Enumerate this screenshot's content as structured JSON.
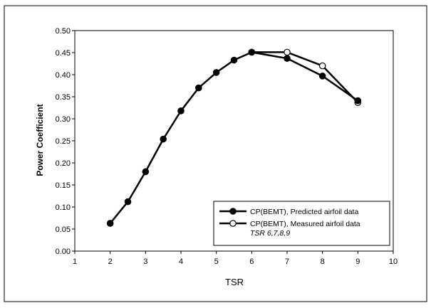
{
  "chart_data": {
    "type": "line",
    "title": "",
    "xlabel": "TSR",
    "ylabel": "Power Coefficient",
    "xlim": [
      1,
      10
    ],
    "ylim": [
      0.0,
      0.5
    ],
    "x_ticks": [
      "1",
      "2",
      "3",
      "4",
      "5",
      "6",
      "7",
      "8",
      "9",
      "10"
    ],
    "y_ticks": [
      "0.00",
      "0.05",
      "0.10",
      "0.15",
      "0.20",
      "0.25",
      "0.30",
      "0.35",
      "0.40",
      "0.45",
      "0.50"
    ],
    "grid": false,
    "legend_position": "bottom-right",
    "series": [
      {
        "name": "CP(BEMT), Predicted airfoil data",
        "marker": "filled-circle",
        "color": "#000000",
        "x": [
          2,
          2.5,
          3,
          3.5,
          4,
          4.5,
          5,
          5.5,
          6,
          7,
          8,
          9
        ],
        "y": [
          0.063,
          0.112,
          0.18,
          0.254,
          0.318,
          0.37,
          0.405,
          0.433,
          0.451,
          0.437,
          0.397,
          0.341
        ]
      },
      {
        "name": "CP(BEMT), Measured airfoil data",
        "name_line2": "TSR 6,7,8,9",
        "marker": "open-circle",
        "color": "#000000",
        "x": [
          6,
          7,
          8,
          9
        ],
        "y": [
          0.451,
          0.451,
          0.42,
          0.337
        ]
      }
    ]
  }
}
